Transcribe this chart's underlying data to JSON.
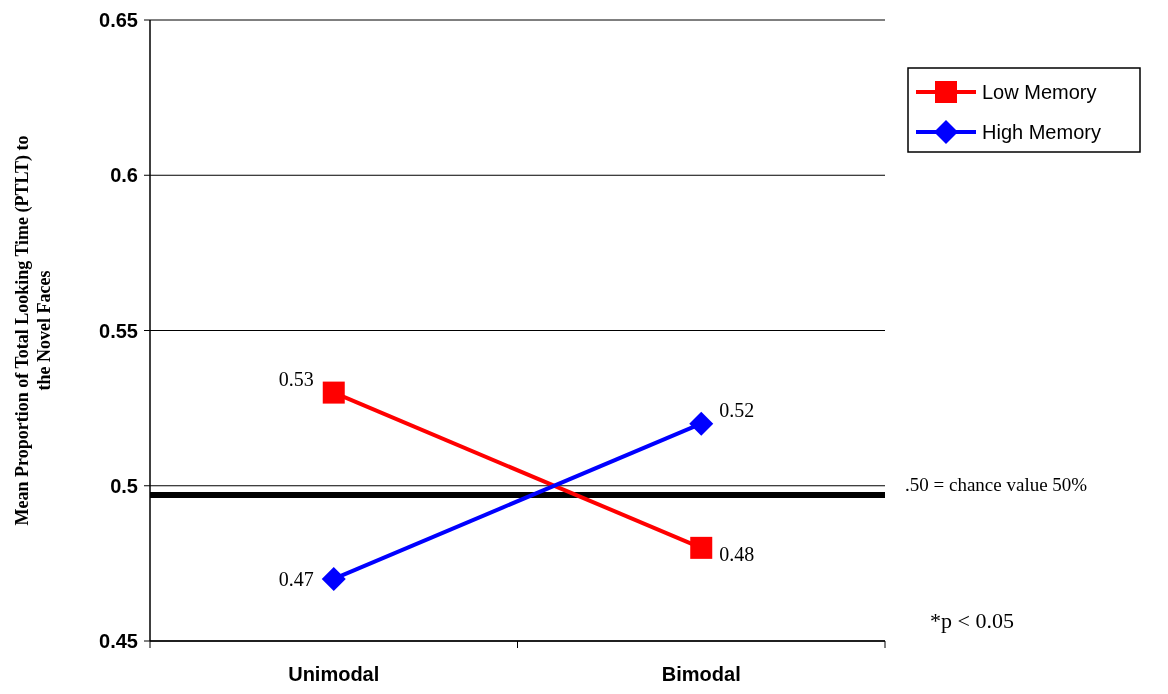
{
  "chart_data": {
    "type": "line",
    "categories": [
      "Unimodal",
      "Bimodal"
    ],
    "series": [
      {
        "name": "Low Memory",
        "color": "#ff0000",
        "values": [
          0.53,
          0.48
        ],
        "marker": "square"
      },
      {
        "name": "High Memory",
        "color": "#0000ff",
        "values": [
          0.47,
          0.52
        ],
        "marker": "diamond"
      }
    ],
    "ylabel": "Mean Proportion of Total Looking Time (PTLT) to the Novel Faces",
    "ylim": [
      0.45,
      0.65
    ],
    "yticks": [
      0.45,
      0.5,
      0.55,
      0.6,
      0.65
    ],
    "grid": "y",
    "legend": "top right",
    "data_labels": true,
    "ref_lines": [
      {
        "axis": "y",
        "value": 0.497,
        "label": ".50 = chance value 50%",
        "color": "#000000"
      }
    ],
    "annotations": [
      "*p < 0.05"
    ]
  }
}
